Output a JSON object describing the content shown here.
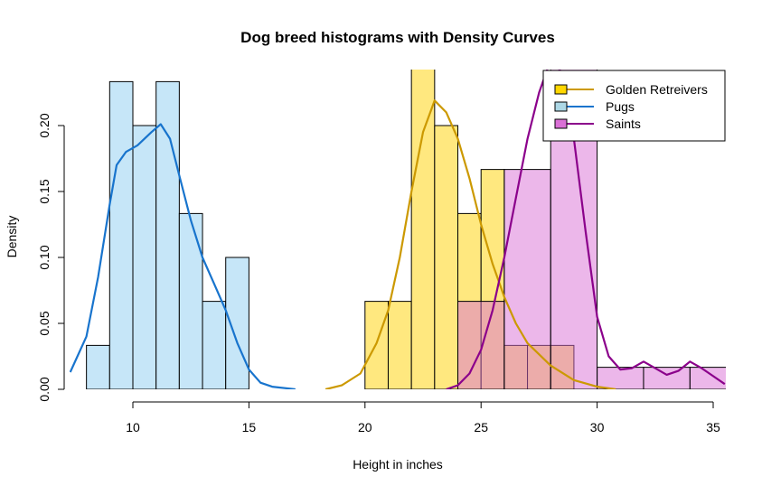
{
  "chart_data": {
    "type": "histogram",
    "title": "Dog breed histograms with Density Curves",
    "xlabel": "Height in inches",
    "ylabel": "Density",
    "xlim": [
      7.3,
      35.5
    ],
    "ylim": [
      0,
      0.24
    ],
    "x_ticks": [
      10,
      15,
      20,
      25,
      30,
      35
    ],
    "y_ticks": [
      "0.00",
      "0.05",
      "0.10",
      "0.15",
      "0.20"
    ],
    "grid": false,
    "legend": {
      "position": "top-right",
      "entries": [
        {
          "label": "Golden Retreivers",
          "fill": "#FFD700",
          "line": "#CC9900"
        },
        {
          "label": "Pugs",
          "fill": "#ADD8E6",
          "line": "#1874CD"
        },
        {
          "label": "Saints",
          "fill": "#DA70D6",
          "line": "#8B008B"
        }
      ]
    },
    "series": [
      {
        "name": "Pugs",
        "fill": "#C6E6F8",
        "line": "#1874CD",
        "bins": [
          [
            8,
            9,
            0.0333
          ],
          [
            9,
            10,
            0.2333
          ],
          [
            10,
            11,
            0.2
          ],
          [
            11,
            12,
            0.2333
          ],
          [
            12,
            13,
            0.1333
          ],
          [
            13,
            14,
            0.0667
          ],
          [
            14,
            15,
            0.1
          ]
        ],
        "density": [
          [
            7.3,
            0.013
          ],
          [
            8,
            0.04
          ],
          [
            8.5,
            0.085
          ],
          [
            9,
            0.14
          ],
          [
            9.3,
            0.17
          ],
          [
            9.7,
            0.18
          ],
          [
            10.2,
            0.185
          ],
          [
            10.8,
            0.195
          ],
          [
            11.2,
            0.201
          ],
          [
            11.6,
            0.19
          ],
          [
            12,
            0.162
          ],
          [
            12.5,
            0.128
          ],
          [
            13,
            0.1
          ],
          [
            13.5,
            0.08
          ],
          [
            14,
            0.06
          ],
          [
            14.5,
            0.035
          ],
          [
            15,
            0.015
          ],
          [
            15.5,
            0.005
          ],
          [
            16,
            0.002
          ],
          [
            17,
            0.0
          ]
        ]
      },
      {
        "name": "Golden Retreivers",
        "fill": "#FFE87F",
        "line": "#CC9900",
        "bins": [
          [
            20,
            21,
            0.0667
          ],
          [
            21,
            22,
            0.0667
          ],
          [
            22,
            23,
            0.2667
          ],
          [
            23,
            24,
            0.2
          ],
          [
            24,
            25,
            0.1333
          ],
          [
            25,
            26,
            0.1667
          ],
          [
            26,
            27,
            0.0333
          ],
          [
            27,
            28,
            0.0333
          ],
          [
            28,
            29,
            0.0333
          ]
        ],
        "density": [
          [
            18.3,
            0.0
          ],
          [
            19,
            0.003
          ],
          [
            19.8,
            0.012
          ],
          [
            20.5,
            0.035
          ],
          [
            21,
            0.06
          ],
          [
            21.5,
            0.1
          ],
          [
            22,
            0.15
          ],
          [
            22.5,
            0.195
          ],
          [
            23,
            0.219
          ],
          [
            23.5,
            0.21
          ],
          [
            24,
            0.19
          ],
          [
            24.5,
            0.16
          ],
          [
            25,
            0.125
          ],
          [
            25.5,
            0.095
          ],
          [
            26,
            0.07
          ],
          [
            26.5,
            0.05
          ],
          [
            27,
            0.035
          ],
          [
            28,
            0.018
          ],
          [
            29,
            0.007
          ],
          [
            30,
            0.002
          ],
          [
            30.8,
            0.0
          ]
        ]
      },
      {
        "name": "Saints",
        "fill": "#DA70D6",
        "opacity": 0.5,
        "line": "#8B008B",
        "bins": [
          [
            24,
            26,
            0.0667
          ],
          [
            26,
            28,
            0.1667
          ],
          [
            28,
            30,
            0.2667
          ],
          [
            30,
            32,
            0.0167
          ],
          [
            32,
            34,
            0.0167
          ],
          [
            34,
            36,
            0.0167
          ]
        ],
        "density": [
          [
            23.5,
            0.0
          ],
          [
            24,
            0.003
          ],
          [
            24.5,
            0.012
          ],
          [
            25,
            0.03
          ],
          [
            25.5,
            0.06
          ],
          [
            26,
            0.1
          ],
          [
            26.5,
            0.145
          ],
          [
            27,
            0.19
          ],
          [
            27.5,
            0.225
          ],
          [
            28,
            0.25
          ],
          [
            28.5,
            0.24
          ],
          [
            29,
            0.19
          ],
          [
            29.5,
            0.12
          ],
          [
            30,
            0.055
          ],
          [
            30.5,
            0.025
          ],
          [
            31,
            0.015
          ],
          [
            31.5,
            0.016
          ],
          [
            32,
            0.021
          ],
          [
            32.5,
            0.016
          ],
          [
            33,
            0.011
          ],
          [
            33.5,
            0.014
          ],
          [
            34,
            0.021
          ],
          [
            34.5,
            0.016
          ],
          [
            35,
            0.01
          ],
          [
            35.5,
            0.004
          ]
        ]
      }
    ]
  }
}
